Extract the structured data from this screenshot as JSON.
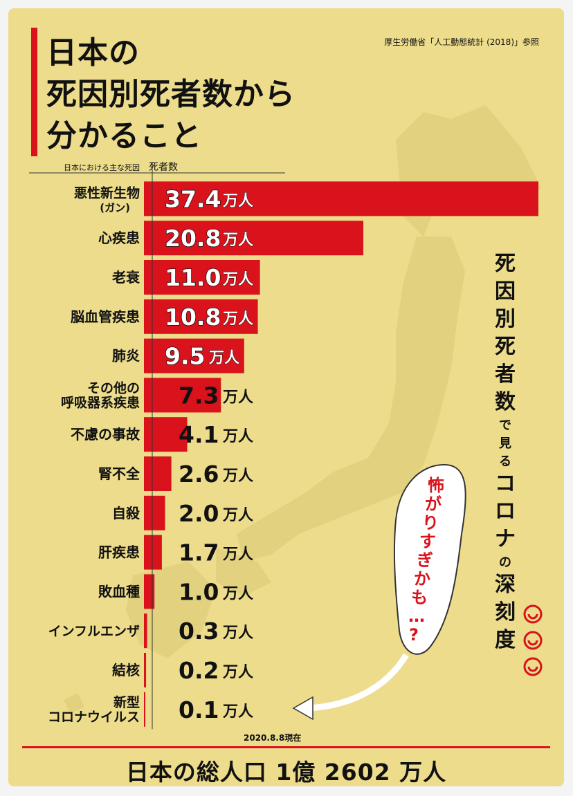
{
  "title": {
    "lines": [
      "日本の",
      "死因別死者数から",
      "分かること"
    ]
  },
  "source": "厚生労働省「人工動態統計 (2018)」参照",
  "chart_data": {
    "type": "bar",
    "orientation": "horizontal",
    "category_header": "日本における主な死因",
    "value_header": "死者数",
    "unit": "万人",
    "categories": [
      [
        "悪性新生物",
        "(ガン)"
      ],
      [
        "心疾患"
      ],
      [
        "老衰"
      ],
      [
        "脳血管疾患"
      ],
      [
        "肺炎"
      ],
      [
        "その他の",
        "呼吸器系疾患"
      ],
      [
        "不慮の事故"
      ],
      [
        "腎不全"
      ],
      [
        "自殺"
      ],
      [
        "肝疾患"
      ],
      [
        "敗血種"
      ],
      [
        "インフルエンザ"
      ],
      [
        "結核"
      ],
      [
        "新型",
        "コロナウイルス"
      ]
    ],
    "values": [
      37.4,
      20.8,
      11.0,
      10.8,
      9.5,
      7.3,
      4.1,
      2.6,
      2.0,
      1.7,
      1.0,
      0.3,
      0.2,
      0.1
    ],
    "value_labels": [
      "37.4",
      "20.8",
      "11.0",
      "10.8",
      "9.5",
      "7.3",
      "4.1",
      "2.6",
      "2.0",
      "1.7",
      "1.0",
      "0.3",
      "0.2",
      "0.1"
    ],
    "bar_color": "#d9121b",
    "xlim": [
      0,
      37.4
    ]
  },
  "vertical_caption": {
    "chars": [
      "死",
      "因",
      "別",
      "死",
      "者",
      "数",
      "で",
      "見",
      "る",
      "コ",
      "ロ",
      "ナ",
      "の",
      "深",
      "刻",
      "度"
    ],
    "small_chars": [
      "で",
      "見",
      "る",
      "の"
    ]
  },
  "bubble_text": [
    "怖",
    "が",
    "り",
    "す",
    "ぎ",
    "か",
    "も",
    "…",
    "?"
  ],
  "date_note": "2020.8.8現在",
  "total_population": "日本の総人口 1億 2602 万人",
  "colors": {
    "background": "#ecdc8c",
    "accent": "#d9121b",
    "text": "#111111"
  }
}
